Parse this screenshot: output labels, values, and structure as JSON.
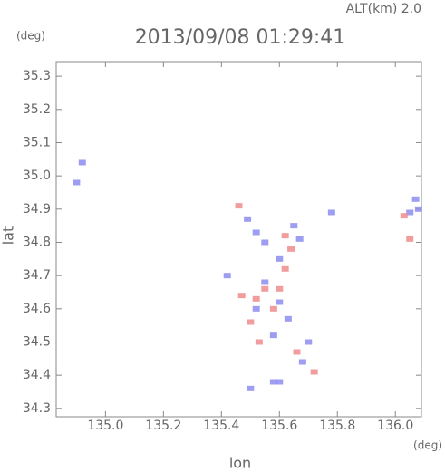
{
  "chart_data": {
    "type": "scatter",
    "title": "2013/09/08 01:29:41",
    "annotation": "ALT(km) 2.0",
    "y_unit": "(deg)",
    "x_unit": "(deg)",
    "x_label": "lon",
    "y_label": "lat",
    "xlim": [
      134.83,
      136.09
    ],
    "ylim": [
      34.275,
      35.344
    ],
    "xticks": [
      {
        "value": 135.0,
        "label": "135.0"
      },
      135.2,
      135.4,
      135.6,
      135.8,
      {
        "value": 136.0,
        "label": "136.0"
      }
    ],
    "yticks": [
      34.3,
      34.4,
      34.5,
      34.6,
      34.7,
      34.8,
      34.9,
      {
        "value": 35.0,
        "label": "35.0"
      },
      35.1,
      35.2,
      35.3
    ],
    "series": [
      {
        "color": "#8c8cf0",
        "x": [
          134.92,
          134.9,
          135.49,
          135.52,
          135.55,
          135.65,
          135.67,
          135.6,
          135.42,
          135.55,
          135.6,
          135.63,
          135.52,
          135.58,
          135.7,
          135.68,
          135.6,
          135.58,
          136.08,
          136.05,
          136.07,
          135.78,
          135.5
        ],
        "values": [
          35.04,
          34.98,
          34.87,
          34.83,
          34.8,
          34.85,
          34.81,
          34.75,
          34.7,
          34.68,
          34.62,
          34.57,
          34.6,
          34.52,
          34.5,
          34.44,
          34.38,
          34.38,
          34.9,
          34.89,
          34.93,
          34.89,
          34.36
        ]
      },
      {
        "color": "#f08c8c",
        "x": [
          135.46,
          135.62,
          135.64,
          135.55,
          135.6,
          135.52,
          135.58,
          135.5,
          135.53,
          135.66,
          135.72,
          136.05,
          136.03,
          135.47,
          135.62
        ],
        "values": [
          34.91,
          34.82,
          34.78,
          34.66,
          34.66,
          34.63,
          34.6,
          34.56,
          34.5,
          34.47,
          34.41,
          34.81,
          34.88,
          34.64,
          34.72
        ]
      }
    ]
  }
}
